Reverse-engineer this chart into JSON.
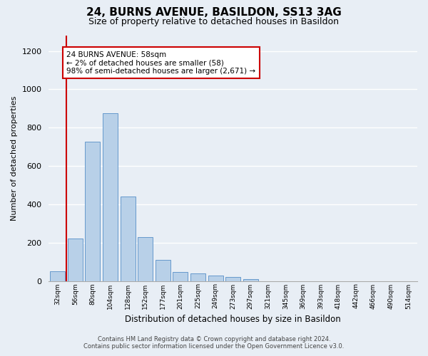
{
  "title": "24, BURNS AVENUE, BASILDON, SS13 3AG",
  "subtitle": "Size of property relative to detached houses in Basildon",
  "xlabel": "Distribution of detached houses by size in Basildon",
  "ylabel": "Number of detached properties",
  "bar_labels": [
    "32sqm",
    "56sqm",
    "80sqm",
    "104sqm",
    "128sqm",
    "152sqm",
    "177sqm",
    "201sqm",
    "225sqm",
    "249sqm",
    "273sqm",
    "297sqm",
    "321sqm",
    "345sqm",
    "369sqm",
    "393sqm",
    "418sqm",
    "442sqm",
    "466sqm",
    "490sqm",
    "514sqm"
  ],
  "bar_values": [
    50,
    220,
    725,
    875,
    440,
    230,
    108,
    47,
    38,
    27,
    20,
    10,
    0,
    0,
    0,
    0,
    0,
    0,
    0,
    0,
    0
  ],
  "bar_color": "#b8d0e8",
  "bar_edge_color": "#6699cc",
  "vline_color": "#cc0000",
  "annotation_text": "24 BURNS AVENUE: 58sqm\n← 2% of detached houses are smaller (58)\n98% of semi-detached houses are larger (2,671) →",
  "annotation_box_color": "#ffffff",
  "annotation_box_edge": "#cc0000",
  "ylim": [
    0,
    1280
  ],
  "yticks": [
    0,
    200,
    400,
    600,
    800,
    1000,
    1200
  ],
  "footer_line1": "Contains HM Land Registry data © Crown copyright and database right 2024.",
  "footer_line2": "Contains public sector information licensed under the Open Government Licence v3.0.",
  "bg_color": "#e8eef5",
  "plot_bg_color": "#e8eef5",
  "title_fontsize": 11,
  "subtitle_fontsize": 9
}
